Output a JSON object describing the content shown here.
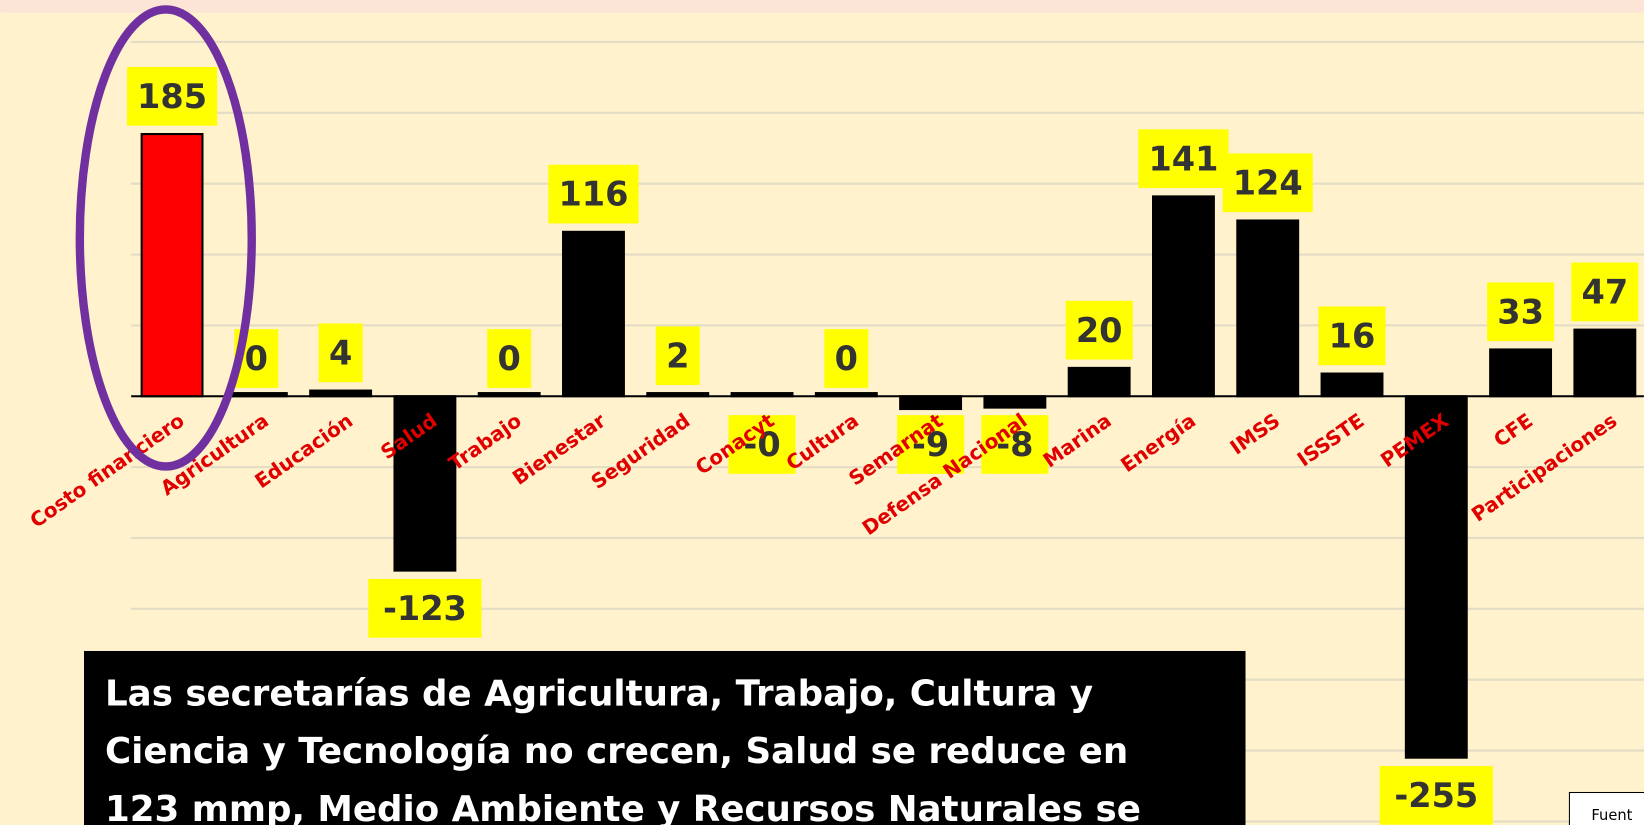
{
  "chart_data": {
    "type": "bar",
    "categories": [
      "Costo financiero",
      "Agricultura",
      "Educación",
      "Salud",
      "Trabajo",
      "Bienestar",
      "Seguridad",
      "Conacyt",
      "Cultura",
      "Semarnat",
      "Defensa Nacional",
      "Marina",
      "Energía",
      "IMSS",
      "ISSSTE",
      "PEMEX",
      "CFE",
      "Participaciones"
    ],
    "values": [
      185,
      0,
      4,
      -123,
      0,
      116,
      2,
      0,
      0,
      -9,
      -8,
      20,
      141,
      124,
      16,
      -255,
      33,
      47
    ],
    "value_labels": [
      "185",
      "0",
      "4",
      "-123",
      "0",
      "116",
      "2",
      "-0",
      "0",
      "-9",
      "-8",
      "20",
      "141",
      "124",
      "16",
      "-255",
      "33",
      "47"
    ],
    "colors": [
      "#ff0000",
      "#000000",
      "#000000",
      "#000000",
      "#000000",
      "#000000",
      "#000000",
      "#000000",
      "#000000",
      "#000000",
      "#000000",
      "#000000",
      "#000000",
      "#000000",
      "#000000",
      "#000000",
      "#000000",
      "#000000"
    ],
    "ylim": [
      -300,
      250
    ],
    "grid_lines": [
      -300,
      -250,
      -200,
      -150,
      -100,
      -50,
      0,
      50,
      100,
      150,
      200,
      250
    ],
    "grid": true,
    "annotation": [
      "Las secretarías de Agricultura, Trabajo, Cultura y",
      "Ciencia y Tecnología no crecen, Salud se reduce en",
      "123 mmp, Medio Ambiente y Recursos Naturales se"
    ],
    "source": "Fuent"
  }
}
